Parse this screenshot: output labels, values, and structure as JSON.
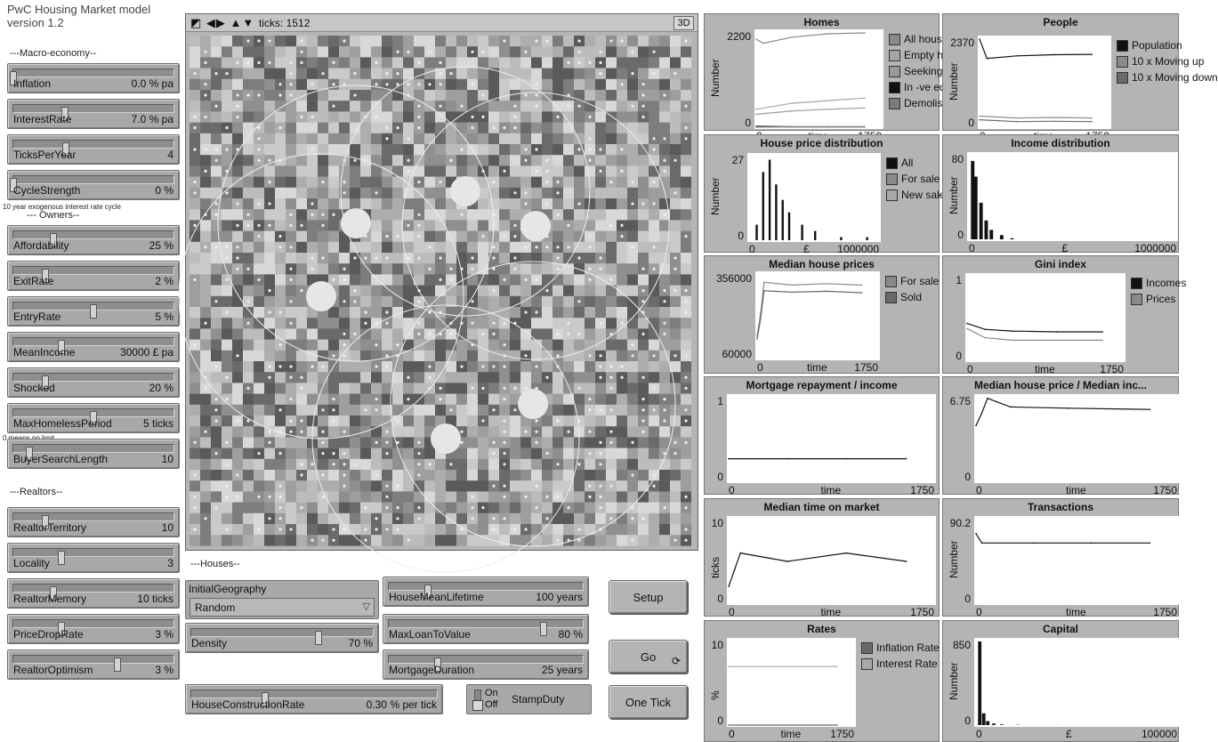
{
  "app": {
    "title": "PwC Housing Market model version 1.2"
  },
  "sections": {
    "macro": "---Macro-economy--",
    "owners": "--- Owners--",
    "realtors": "---Realtors--",
    "houses": "---Houses--"
  },
  "notes": {
    "cycle": "10 year exogenous interest rate cycle",
    "homeless": "0 means no limit"
  },
  "sliders": [
    {
      "name": "Inflation",
      "value": "0.0 % pa",
      "position": 0.0
    },
    {
      "name": "InterestRate",
      "value": "7.0 % pa",
      "position": 0.32
    },
    {
      "name": "TicksPerYear",
      "value": "4",
      "position": 0.33
    },
    {
      "name": "CycleStrength",
      "value": "0 %",
      "position": 0.0
    },
    {
      "name": "Affordability",
      "value": "25 %",
      "position": 0.25
    },
    {
      "name": "ExitRate",
      "value": "2 %",
      "position": 0.2
    },
    {
      "name": "EntryRate",
      "value": "5 %",
      "position": 0.5
    },
    {
      "name": "MeanIncome",
      "value": "30000 £ pa",
      "position": 0.3
    },
    {
      "name": "Shocked",
      "value": "20 %",
      "position": 0.2
    },
    {
      "name": "MaxHomelessPeriod",
      "value": "5 ticks",
      "position": 0.5
    },
    {
      "name": "BuyerSearchLength",
      "value": "10",
      "position": 0.1
    },
    {
      "name": "RealtorTerritory",
      "value": "10",
      "position": 0.2
    },
    {
      "name": "Locality",
      "value": "3",
      "position": 0.3
    },
    {
      "name": "RealtorMemory",
      "value": "10 ticks",
      "position": 0.25
    },
    {
      "name": "PriceDropRate",
      "value": "3 %",
      "position": 0.3
    },
    {
      "name": "RealtorOptimism",
      "value": "3 %",
      "position": 0.65
    }
  ],
  "house_sliders": [
    {
      "name": "HouseMeanLifetime",
      "value": "100 years",
      "position": 0.2
    },
    {
      "name": "MaxLoanToValue",
      "value": "80 %",
      "position": 0.8
    },
    {
      "name": "MortgageDuration",
      "value": "25 years",
      "position": 0.25
    },
    {
      "name": "Density",
      "value": "70 %",
      "position": 0.7
    },
    {
      "name": "HouseConstructionRate",
      "value": "0.30 % per tick",
      "position": 0.3
    }
  ],
  "chooser": {
    "label": "InitialGeography",
    "value": "Random"
  },
  "buttons": {
    "setup": "Setup",
    "go": "Go",
    "one_tick": "One Tick"
  },
  "switch": {
    "label": "StampDuty",
    "on": "On",
    "off": "Off",
    "state": "off"
  },
  "world": {
    "ticks_label": "ticks: 1512",
    "threed_label": "3D"
  },
  "plots": [
    {
      "id": "homes",
      "title": "Homes",
      "ylabel": "Number",
      "xlabel": "time",
      "y_max": "2200",
      "y_min": "0",
      "x_min": "0",
      "x_max": "1750",
      "legend": [
        {
          "name": "All houses",
          "color": "#8a8a8a"
        },
        {
          "name": "Empty houses",
          "color": "#a6a6a6"
        },
        {
          "name": "Seeking a home",
          "color": "#9a9a9a"
        },
        {
          "name": "In -ve equity",
          "color": "#111111"
        },
        {
          "name": "Demolished",
          "color": "#7a7a7a"
        }
      ]
    },
    {
      "id": "people",
      "title": "People",
      "ylabel": "Number",
      "xlabel": "time",
      "y_max": "2370",
      "y_min": "0",
      "x_min": "0",
      "x_max": "1750",
      "legend": [
        {
          "name": "Population",
          "color": "#111111"
        },
        {
          "name": "10 x Moving up",
          "color": "#8c8c8c"
        },
        {
          "name": "10 x Moving down",
          "color": "#6a6a6a"
        }
      ]
    },
    {
      "id": "price-dist",
      "title": "House price distribution",
      "ylabel": "Number",
      "xlabel": "£",
      "y_max": "27",
      "y_min": "0",
      "x_min": "0",
      "x_max": "1000000",
      "legend": [
        {
          "name": "All",
          "color": "#111111"
        },
        {
          "name": "For sale",
          "color": "#8a8a8a"
        },
        {
          "name": "New sales",
          "color": "#a8a8a8"
        }
      ]
    },
    {
      "id": "income-dist",
      "title": "Income distribution",
      "ylabel": "Number",
      "xlabel": "£",
      "y_max": "80",
      "y_min": "0",
      "x_min": "0",
      "x_max": "1000000",
      "legend": []
    },
    {
      "id": "median-prices",
      "title": "Median house prices",
      "ylabel": "",
      "xlabel": "time",
      "y_max": "356000",
      "y_min": "60000",
      "x_min": "0",
      "x_max": "1750",
      "legend": [
        {
          "name": "For sale",
          "color": "#8a8a8a"
        },
        {
          "name": "Sold",
          "color": "#6a6a6a"
        }
      ]
    },
    {
      "id": "gini",
      "title": "Gini index",
      "ylabel": "",
      "xlabel": "time",
      "y_max": "1",
      "y_min": "0",
      "x_min": "0",
      "x_max": "1750",
      "legend": [
        {
          "name": "Incomes",
          "color": "#111111"
        },
        {
          "name": "Prices",
          "color": "#8a8a8a"
        }
      ]
    },
    {
      "id": "mortgage",
      "title": "Mortgage repayment / income",
      "ylabel": "",
      "xlabel": "time",
      "y_max": "1",
      "y_min": "0",
      "x_min": "0",
      "x_max": "1750",
      "legend": []
    },
    {
      "id": "price-income",
      "title": "Median house price / Median inc...",
      "ylabel": "",
      "xlabel": "time",
      "y_max": "6.75",
      "y_min": "0",
      "x_min": "0",
      "x_max": "1750",
      "legend": []
    },
    {
      "id": "time-market",
      "title": "Median time on market",
      "ylabel": "ticks",
      "xlabel": "time",
      "y_max": "10",
      "y_min": "0",
      "x_min": "0",
      "x_max": "1750",
      "legend": []
    },
    {
      "id": "transactions",
      "title": "Transactions",
      "ylabel": "Number",
      "xlabel": "time",
      "y_max": "90.2",
      "y_min": "0",
      "x_min": "0",
      "x_max": "1750",
      "legend": []
    },
    {
      "id": "rates",
      "title": "Rates",
      "ylabel": "%",
      "xlabel": "time",
      "y_max": "10",
      "y_min": "0",
      "x_min": "0",
      "x_max": "1750",
      "legend": [
        {
          "name": "Inflation Rate",
          "color": "#6a6a6a"
        },
        {
          "name": "Interest Rate",
          "color": "#a8a8a8"
        }
      ]
    },
    {
      "id": "capital",
      "title": "Capital",
      "ylabel": "Number",
      "xlabel": "£",
      "y_max": "850",
      "y_min": "0",
      "x_min": "0",
      "x_max": "100000",
      "legend": []
    }
  ],
  "chart_data": [
    {
      "type": "line",
      "title": "Homes",
      "ylabel": "Number",
      "xlabel": "time",
      "xlim": [
        0,
        1750
      ],
      "ylim": [
        0,
        2200
      ],
      "series": [
        {
          "name": "All houses",
          "x": [
            0,
            100,
            500,
            1000,
            1512
          ],
          "values": [
            2050,
            1960,
            2100,
            2180,
            2200
          ]
        },
        {
          "name": "Empty houses",
          "x": [
            0,
            500,
            1000,
            1512
          ],
          "values": [
            420,
            560,
            620,
            680
          ]
        },
        {
          "name": "Seeking a home",
          "x": [
            0,
            500,
            1000,
            1512
          ],
          "values": [
            300,
            380,
            420,
            450
          ]
        },
        {
          "name": "In -ve equity",
          "x": [
            0,
            500,
            1000,
            1512
          ],
          "values": [
            20,
            10,
            10,
            10
          ]
        },
        {
          "name": "Demolished",
          "x": [
            0,
            500,
            1000,
            1512
          ],
          "values": [
            5,
            8,
            8,
            8
          ]
        }
      ]
    },
    {
      "type": "line",
      "title": "People",
      "ylabel": "Number",
      "xlabel": "time",
      "xlim": [
        0,
        1750
      ],
      "ylim": [
        0,
        2370
      ],
      "series": [
        {
          "name": "Population",
          "x": [
            0,
            100,
            500,
            1000,
            1512
          ],
          "values": [
            2370,
            1850,
            1920,
            1950,
            1960
          ]
        },
        {
          "name": "10 x Moving up",
          "x": [
            0,
            500,
            1000,
            1512
          ],
          "values": [
            300,
            250,
            260,
            250
          ]
        },
        {
          "name": "10 x Moving down",
          "x": [
            0,
            500,
            1000,
            1512
          ],
          "values": [
            200,
            150,
            160,
            150
          ]
        }
      ]
    },
    {
      "type": "bar",
      "title": "House price distribution",
      "ylabel": "Number",
      "xlabel": "£",
      "xlim": [
        0,
        1000000
      ],
      "ylim": [
        0,
        27
      ],
      "series": [
        {
          "name": "All",
          "x": [
            50000,
            100000,
            150000,
            200000,
            250000,
            300000,
            400000,
            500000,
            700000,
            900000
          ],
          "values": [
            5,
            22,
            26,
            18,
            13,
            9,
            5,
            3,
            1,
            1
          ]
        }
      ]
    },
    {
      "type": "bar",
      "title": "Income distribution",
      "ylabel": "Number",
      "xlabel": "£",
      "xlim": [
        0,
        1000000
      ],
      "ylim": [
        0,
        80
      ],
      "series": [
        {
          "name": "",
          "x": [
            10000,
            25000,
            50000,
            75000,
            100000,
            150000,
            200000
          ],
          "values": [
            75,
            60,
            35,
            18,
            9,
            4,
            1
          ]
        }
      ]
    },
    {
      "type": "line",
      "title": "Median house prices",
      "xlabel": "time",
      "xlim": [
        0,
        1750
      ],
      "ylim": [
        60000,
        356000
      ],
      "series": [
        {
          "name": "For sale",
          "x": [
            0,
            50,
            100,
            500,
            1000,
            1512
          ],
          "values": [
            140000,
            220000,
            330000,
            320000,
            325000,
            320000
          ]
        },
        {
          "name": "Sold",
          "x": [
            0,
            50,
            100,
            500,
            1000,
            1512
          ],
          "values": [
            130000,
            200000,
            300000,
            295000,
            298000,
            293000
          ]
        }
      ]
    },
    {
      "type": "line",
      "title": "Gini index",
      "xlabel": "time",
      "xlim": [
        0,
        1750
      ],
      "ylim": [
        0,
        1
      ],
      "series": [
        {
          "name": "Incomes",
          "x": [
            0,
            200,
            500,
            1000,
            1512
          ],
          "values": [
            0.44,
            0.37,
            0.35,
            0.34,
            0.34
          ]
        },
        {
          "name": "Prices",
          "x": [
            0,
            200,
            500,
            1000,
            1512
          ],
          "values": [
            0.38,
            0.27,
            0.24,
            0.24,
            0.24
          ]
        }
      ]
    },
    {
      "type": "line",
      "title": "Mortgage repayment / income",
      "xlabel": "time",
      "xlim": [
        0,
        1750
      ],
      "ylim": [
        0,
        1
      ],
      "series": [
        {
          "name": "",
          "x": [
            0,
            500,
            1000,
            1512
          ],
          "values": [
            0.27,
            0.27,
            0.27,
            0.27
          ]
        }
      ]
    },
    {
      "type": "line",
      "title": "Median house price / Median inc...",
      "xlabel": "time",
      "xlim": [
        0,
        1750
      ],
      "ylim": [
        0,
        6.75
      ],
      "series": [
        {
          "name": "",
          "x": [
            0,
            50,
            100,
            300,
            800,
            1512
          ],
          "values": [
            4.5,
            5.5,
            6.7,
            6.0,
            5.9,
            5.8
          ]
        }
      ]
    },
    {
      "type": "line",
      "title": "Median time on market",
      "ylabel": "ticks",
      "xlabel": "time",
      "xlim": [
        0,
        1750
      ],
      "ylim": [
        0,
        10
      ],
      "series": [
        {
          "name": "",
          "x": [
            0,
            50,
            100,
            500,
            1000,
            1512
          ],
          "values": [
            2,
            4,
            6,
            5,
            6,
            5
          ]
        }
      ]
    },
    {
      "type": "line",
      "title": "Transactions",
      "ylabel": "Number",
      "xlabel": "time",
      "xlim": [
        0,
        1750
      ],
      "ylim": [
        0,
        90.2
      ],
      "series": [
        {
          "name": "",
          "x": [
            0,
            50,
            500,
            1000,
            1512
          ],
          "values": [
            75,
            65,
            65,
            65,
            65
          ]
        }
      ]
    },
    {
      "type": "line",
      "title": "Rates",
      "ylabel": "%",
      "xlabel": "time",
      "xlim": [
        0,
        1750
      ],
      "ylim": [
        0,
        10
      ],
      "series": [
        {
          "name": "Inflation Rate",
          "x": [
            0,
            1512
          ],
          "values": [
            0,
            0
          ]
        },
        {
          "name": "Interest Rate",
          "x": [
            0,
            1512
          ],
          "values": [
            7,
            7
          ]
        }
      ]
    },
    {
      "type": "bar",
      "title": "Capital",
      "ylabel": "Number",
      "xlabel": "£",
      "xlim": [
        0,
        100000
      ],
      "ylim": [
        0,
        850
      ],
      "series": [
        {
          "name": "",
          "x": [
            1000,
            3000,
            5000,
            8000,
            12000,
            20000,
            40000
          ],
          "values": [
            850,
            120,
            40,
            15,
            6,
            3,
            1
          ]
        }
      ]
    }
  ]
}
